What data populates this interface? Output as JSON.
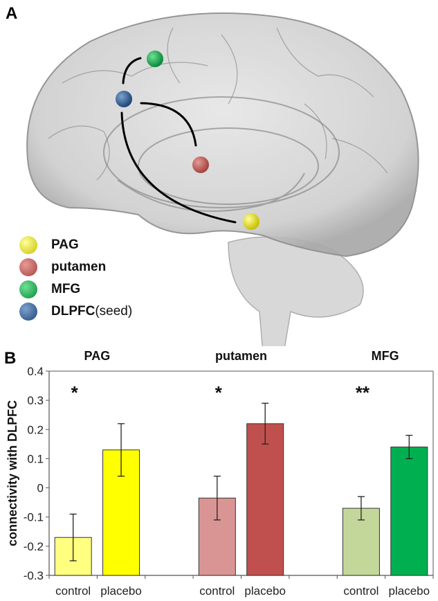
{
  "panel_a": {
    "label": "A",
    "legend": [
      {
        "name": "PAG",
        "extra": "",
        "color": "#f2ea10"
      },
      {
        "name": "putamen",
        "extra": "",
        "color": "#c0504d"
      },
      {
        "name": "MFG",
        "extra": "",
        "color": "#14a84a"
      },
      {
        "name": "DLPFC",
        "extra": " (seed)",
        "color": "#2f5c93"
      }
    ]
  },
  "panel_b": {
    "label": "B"
  },
  "chart_data": {
    "type": "bar",
    "title": "",
    "ylabel": "connectivity with DLPFC",
    "xlabel": "",
    "ylim": [
      -0.3,
      0.4
    ],
    "yticks": [
      "0.4",
      "0.3",
      "0.2",
      "0.1",
      "0",
      "-0.1",
      "-0.2",
      "-0.3"
    ],
    "grid": false,
    "groups": [
      {
        "name": "PAG",
        "significance": "*",
        "bars": [
          {
            "label": "control",
            "value": -0.17,
            "err_low": -0.25,
            "err_high": -0.09,
            "color": "#ffff80"
          },
          {
            "label": "placebo",
            "value": 0.13,
            "err_low": 0.04,
            "err_high": 0.22,
            "color": "#ffff00"
          }
        ]
      },
      {
        "name": "putamen",
        "significance": "*",
        "bars": [
          {
            "label": "control",
            "value": -0.035,
            "err_low": -0.11,
            "err_high": 0.04,
            "color": "#d99594"
          },
          {
            "label": "placebo",
            "value": 0.22,
            "err_low": 0.15,
            "err_high": 0.29,
            "color": "#c0504d"
          }
        ]
      },
      {
        "name": "MFG",
        "significance": "**",
        "bars": [
          {
            "label": "control",
            "value": -0.07,
            "err_low": -0.11,
            "err_high": -0.03,
            "color": "#c4d79b"
          },
          {
            "label": "placebo",
            "value": 0.14,
            "err_low": 0.1,
            "err_high": 0.18,
            "color": "#00b050"
          }
        ]
      }
    ]
  }
}
